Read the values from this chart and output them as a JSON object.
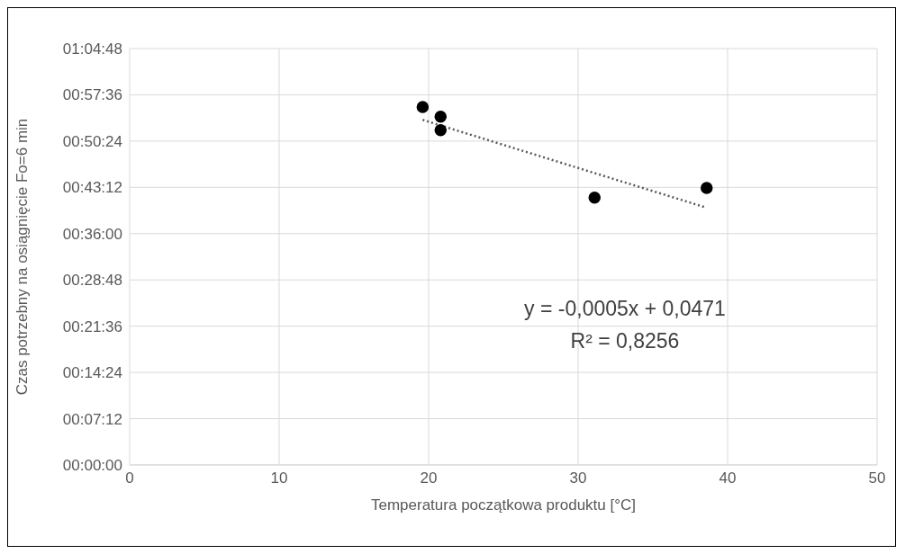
{
  "chart_data": {
    "type": "scatter",
    "xlabel": "Temperatura początkowa produktu [°C]",
    "ylabel": "Czas potrzebny na osiągnięcie Fo=6 min",
    "xlim": [
      0,
      50
    ],
    "xticks": [
      0,
      10,
      20,
      30,
      40,
      50
    ],
    "ylim": [
      0,
      64.8
    ],
    "yticks": [
      {
        "value": 0,
        "label": "00:00:00"
      },
      {
        "value": 7.2,
        "label": "00:07:12"
      },
      {
        "value": 14.4,
        "label": "00:14:24"
      },
      {
        "value": 21.6,
        "label": "00:21:36"
      },
      {
        "value": 28.8,
        "label": "00:28:48"
      },
      {
        "value": 36,
        "label": "00:36:00"
      },
      {
        "value": 43.2,
        "label": "00:43:12"
      },
      {
        "value": 50.4,
        "label": "00:50:24"
      },
      {
        "value": 57.6,
        "label": "00:57:36"
      },
      {
        "value": 64.8,
        "label": "01:04:48"
      }
    ],
    "grid": true,
    "marker": "circle",
    "series": [
      {
        "type": "scatter",
        "color": "#000000",
        "x": [
          19.6,
          20.8,
          20.8,
          31.1,
          38.6
        ],
        "values": [
          55.7,
          54.2,
          52.1,
          41.6,
          43.1
        ]
      },
      {
        "type": "line",
        "color": "#595959",
        "line_style": "dotted",
        "marker": "none",
        "x": [
          19.6,
          38.5
        ],
        "values": [
          53.7,
          40.1
        ]
      }
    ],
    "annotations": [
      "y = -0,0005x + 0,0471",
      "R² = 0,8256"
    ]
  }
}
